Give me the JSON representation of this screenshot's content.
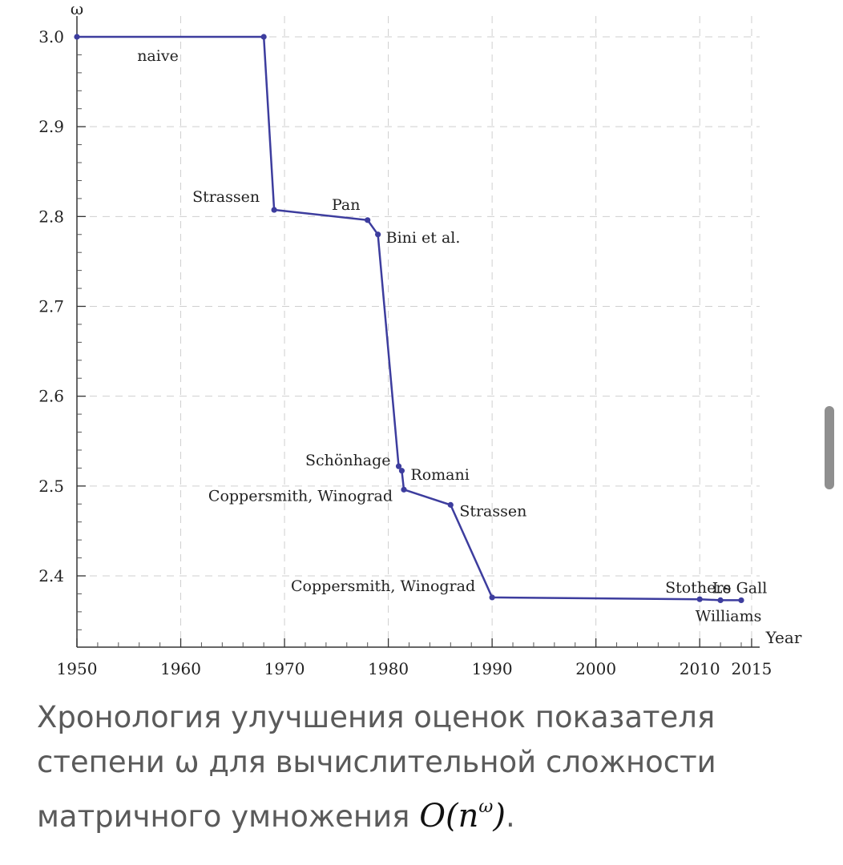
{
  "chart_data": {
    "type": "line",
    "xlabel": "Year",
    "ylabel": "ω",
    "xlim": [
      1950,
      2015
    ],
    "ylim": [
      2.3,
      3.0
    ],
    "grid": true,
    "x_ticks": [
      1950,
      1960,
      1970,
      1980,
      1990,
      2000,
      2010,
      2015
    ],
    "y_ticks": [
      2.4,
      2.5,
      2.6,
      2.7,
      2.8,
      2.9,
      3.0
    ],
    "y_tick_labels": [
      "2.4",
      "2.5",
      "2.6",
      "2.7",
      "2.8",
      "2.9",
      "3.0"
    ],
    "line_color": "#3d3d9e",
    "points": [
      {
        "x": 1950,
        "y": 3.0,
        "label": ""
      },
      {
        "x": 1968,
        "y": 3.0,
        "label": ""
      },
      {
        "x": 1969,
        "y": 2.8074,
        "label": "Strassen"
      },
      {
        "x": 1978,
        "y": 2.796,
        "label": "Pan"
      },
      {
        "x": 1979,
        "y": 2.78,
        "label": "Bini et al."
      },
      {
        "x": 1981,
        "y": 2.522,
        "label": "Schönhage"
      },
      {
        "x": 1981.3,
        "y": 2.517,
        "label": "Romani"
      },
      {
        "x": 1981.5,
        "y": 2.496,
        "label": "Coppersmith, Winograd"
      },
      {
        "x": 1986,
        "y": 2.479,
        "label": "Strassen"
      },
      {
        "x": 1990,
        "y": 2.376,
        "label": "Coppersmith, Winograd"
      },
      {
        "x": 2010,
        "y": 2.374,
        "label": "Stothers"
      },
      {
        "x": 2012,
        "y": 2.3729,
        "label": "Williams"
      },
      {
        "x": 2014,
        "y": 2.3728639,
        "label": "Le Gall"
      }
    ],
    "annotations": [
      "naive"
    ]
  },
  "caption": {
    "text": "Хронология улучшения оценок показателя степени ω для вычислительной сложности матричного умножения ",
    "math": "O(n",
    "math_sup": "ω",
    "math_close": ")",
    "end": "."
  }
}
